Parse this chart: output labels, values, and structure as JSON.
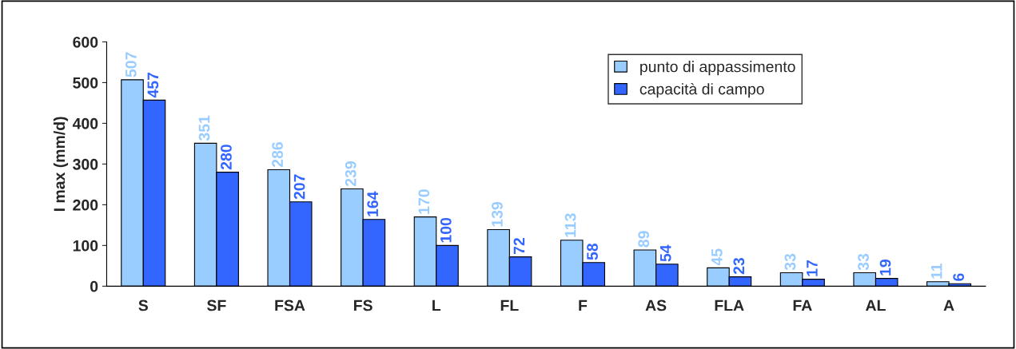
{
  "chart_data": {
    "type": "bar",
    "ylabel": "I max (mm/d)",
    "categories": [
      "S",
      "SF",
      "FSA",
      "FS",
      "L",
      "FL",
      "F",
      "AS",
      "FLA",
      "FA",
      "AL",
      "A"
    ],
    "series": [
      {
        "name": "punto di appassimento",
        "color": "#99ccff",
        "values": [
          507,
          351,
          286,
          239,
          170,
          139,
          113,
          89,
          45,
          33,
          33,
          11
        ]
      },
      {
        "name": "capacità di campo",
        "color": "#3366ff",
        "values": [
          457,
          280,
          207,
          164,
          100,
          72,
          58,
          54,
          23,
          17,
          19,
          6
        ]
      }
    ],
    "ylim": [
      0,
      600
    ],
    "yticks": [
      0,
      100,
      200,
      300,
      400,
      500,
      600
    ],
    "data_labels": true,
    "legend": "top right",
    "grid": false
  }
}
